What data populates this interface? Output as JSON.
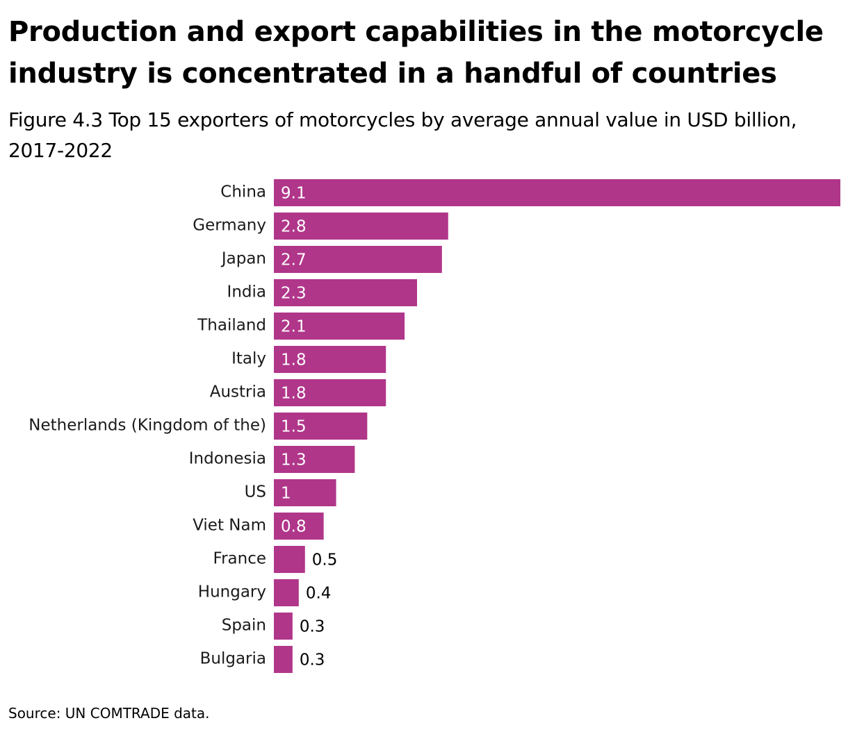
{
  "header": {
    "title": "Production and export capabilities in the motorcycle industry is concentrated in a handful of countries",
    "subtitle": "Figure 4.3 Top 15 exporters of motorcycles by average annual value in USD billion, 2017-2022"
  },
  "footer": {
    "source": "Source: UN COMTRADE data."
  },
  "colors": {
    "bar": "#b0368a",
    "label_inside": "#ffffff",
    "label_outside": "#000000"
  },
  "chart_data": {
    "type": "bar",
    "orientation": "horizontal",
    "categories": [
      "China",
      "Germany",
      "Japan",
      "India",
      "Thailand",
      "Italy",
      "Austria",
      "Netherlands (Kingdom of the)",
      "Indonesia",
      "US",
      "Viet Nam",
      "France",
      "Hungary",
      "Spain",
      "Bulgaria"
    ],
    "values": [
      9.1,
      2.8,
      2.7,
      2.3,
      2.1,
      1.8,
      1.8,
      1.5,
      1.3,
      1,
      0.8,
      0.5,
      0.4,
      0.3,
      0.3
    ],
    "xlim": [
      0,
      9.1
    ],
    "grid": false,
    "legend": "none"
  }
}
